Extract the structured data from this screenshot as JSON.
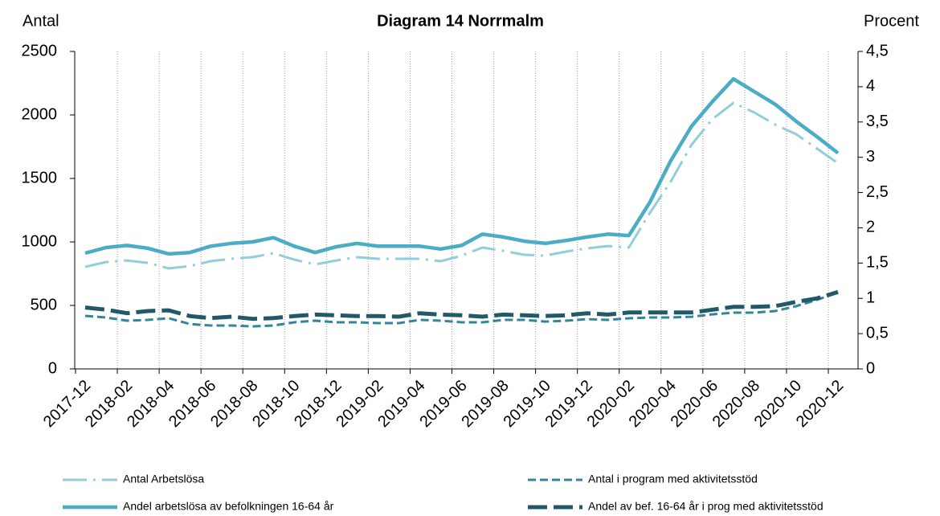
{
  "chart_data": {
    "type": "line",
    "title": "Diagram 14 Norrmalm",
    "ylabel": "Antal",
    "y2label": "Procent",
    "categories": [
      "2017-12",
      null,
      "2018-02",
      null,
      "2018-04",
      null,
      "2018-06",
      null,
      "2018-08",
      null,
      "2018-10",
      null,
      "2018-12",
      null,
      "2019-02",
      null,
      "2019-04",
      null,
      "2019-06",
      null,
      "2019-08",
      null,
      "2019-10",
      null,
      "2019-12",
      null,
      "2020-02",
      null,
      "2020-04",
      null,
      "2020-06",
      null,
      "2020-08",
      null,
      "2020-10",
      null,
      "2020-12"
    ],
    "ylim": [
      0,
      2500
    ],
    "yticks": [
      0,
      500,
      1000,
      1500,
      2000,
      2500
    ],
    "y2lim": [
      0,
      4.5
    ],
    "y2ticks": [
      0,
      {
        "value": 0.5,
        "label": "0,5"
      },
      1,
      {
        "value": 1.5,
        "label": "1,5"
      },
      2,
      {
        "value": 2.5,
        "label": "2,5"
      },
      3,
      {
        "value": 3.5,
        "label": "3,5"
      },
      4,
      {
        "value": 4.5,
        "label": "4,5"
      }
    ],
    "xgrid": true,
    "series": [
      {
        "name": "Antal Arbetslösa",
        "color": "#92cddc",
        "dash": "dashdot",
        "axis": "y",
        "values": [
          804,
          842,
          854,
          835,
          791,
          810,
          848,
          867,
          880,
          911,
          861,
          823,
          854,
          880,
          867,
          867,
          867,
          848,
          892,
          956,
          930,
          899,
          892,
          924,
          949,
          968,
          956,
          1228,
          1475,
          1766,
          1968,
          2095,
          2019,
          1924,
          1848,
          1734,
          1620
        ]
      },
      {
        "name": "Antal i program med aktivitetsstöd",
        "color": "#31859c",
        "dash": "dashed",
        "axis": "y",
        "values": [
          418,
          405,
          380,
          386,
          399,
          354,
          342,
          342,
          335,
          342,
          367,
          380,
          367,
          367,
          361,
          361,
          386,
          380,
          367,
          367,
          386,
          386,
          373,
          380,
          392,
          386,
          399,
          405,
          405,
          411,
          430,
          443,
          443,
          456,
          494,
          544,
          601
        ]
      },
      {
        "name": "Andel arbetslösa av befolkningen 16-64 år",
        "color": "#4bacc6",
        "dash": "solid",
        "axis": "y2",
        "values": [
          1.64,
          1.72,
          1.75,
          1.71,
          1.63,
          1.65,
          1.74,
          1.78,
          1.8,
          1.86,
          1.74,
          1.65,
          1.73,
          1.78,
          1.74,
          1.74,
          1.74,
          1.7,
          1.75,
          1.91,
          1.87,
          1.81,
          1.78,
          1.82,
          1.87,
          1.91,
          1.89,
          2.36,
          2.95,
          3.44,
          3.79,
          4.11,
          3.93,
          3.75,
          3.51,
          3.29,
          3.06
        ]
      },
      {
        "name": "Andel av bef. 16-64 år i prog med aktivitetsstöd",
        "color": "#215968",
        "dash": "longdash",
        "axis": "y2",
        "values": [
          0.87,
          0.84,
          0.79,
          0.82,
          0.83,
          0.75,
          0.72,
          0.74,
          0.71,
          0.72,
          0.75,
          0.77,
          0.76,
          0.75,
          0.75,
          0.74,
          0.79,
          0.77,
          0.76,
          0.74,
          0.77,
          0.76,
          0.75,
          0.76,
          0.79,
          0.77,
          0.8,
          0.8,
          0.8,
          0.8,
          0.84,
          0.88,
          0.88,
          0.89,
          0.95,
          1.0,
          1.09
        ]
      }
    ]
  }
}
